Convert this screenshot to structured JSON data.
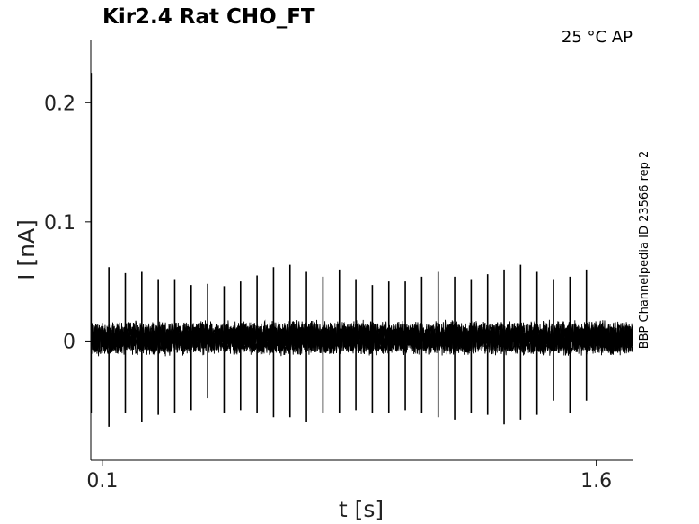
{
  "chart_data": {
    "type": "line",
    "title": "Kir2.4  Rat  CHO_FT",
    "condition": "25 °C  AP",
    "side_label": "BBP Channelpedia ID 23566 rep 2",
    "xlabel": "t [s]",
    "ylabel": "I [nA]",
    "xlim": [
      0.065,
      1.71
    ],
    "ylim": [
      -0.1,
      0.253
    ],
    "xticks": [
      {
        "value": 0.1,
        "label": "0.1"
      },
      {
        "value": 1.6,
        "label": "1.6"
      }
    ],
    "yticks": [
      {
        "value": 0,
        "label": "0"
      },
      {
        "value": 0.1,
        "label": "0.1"
      },
      {
        "value": 0.2,
        "label": "0.2"
      }
    ],
    "grid": false,
    "series": [
      {
        "noise_band": {
          "x_start": 0.065,
          "x_end": 1.71,
          "y_low": -0.013,
          "y_high": 0.018
        },
        "initial_transient": {
          "x": 0.066,
          "y_max": 0.225,
          "y_min": -0.06
        },
        "spikes": [
          {
            "t": 0.12,
            "max": 0.062,
            "min": -0.072
          },
          {
            "t": 0.17,
            "max": 0.057,
            "min": -0.06
          },
          {
            "t": 0.22,
            "max": 0.058,
            "min": -0.068
          },
          {
            "t": 0.27,
            "max": 0.052,
            "min": -0.062
          },
          {
            "t": 0.32,
            "max": 0.052,
            "min": -0.06
          },
          {
            "t": 0.37,
            "max": 0.047,
            "min": -0.058
          },
          {
            "t": 0.42,
            "max": 0.048,
            "min": -0.048
          },
          {
            "t": 0.47,
            "max": 0.046,
            "min": -0.06
          },
          {
            "t": 0.52,
            "max": 0.05,
            "min": -0.058
          },
          {
            "t": 0.57,
            "max": 0.055,
            "min": -0.06
          },
          {
            "t": 0.62,
            "max": 0.062,
            "min": -0.064
          },
          {
            "t": 0.67,
            "max": 0.064,
            "min": -0.064
          },
          {
            "t": 0.72,
            "max": 0.058,
            "min": -0.068
          },
          {
            "t": 0.77,
            "max": 0.054,
            "min": -0.06
          },
          {
            "t": 0.82,
            "max": 0.06,
            "min": -0.06
          },
          {
            "t": 0.87,
            "max": 0.052,
            "min": -0.058
          },
          {
            "t": 0.92,
            "max": 0.047,
            "min": -0.06
          },
          {
            "t": 0.97,
            "max": 0.05,
            "min": -0.06
          },
          {
            "t": 1.02,
            "max": 0.05,
            "min": -0.058
          },
          {
            "t": 1.07,
            "max": 0.054,
            "min": -0.06
          },
          {
            "t": 1.12,
            "max": 0.058,
            "min": -0.064
          },
          {
            "t": 1.17,
            "max": 0.054,
            "min": -0.066
          },
          {
            "t": 1.22,
            "max": 0.052,
            "min": -0.06
          },
          {
            "t": 1.27,
            "max": 0.056,
            "min": -0.062
          },
          {
            "t": 1.32,
            "max": 0.06,
            "min": -0.07
          },
          {
            "t": 1.37,
            "max": 0.064,
            "min": -0.066
          },
          {
            "t": 1.42,
            "max": 0.058,
            "min": -0.062
          },
          {
            "t": 1.47,
            "max": 0.052,
            "min": -0.05
          },
          {
            "t": 1.52,
            "max": 0.054,
            "min": -0.06
          },
          {
            "t": 1.57,
            "max": 0.06,
            "min": -0.05
          }
        ]
      }
    ]
  }
}
